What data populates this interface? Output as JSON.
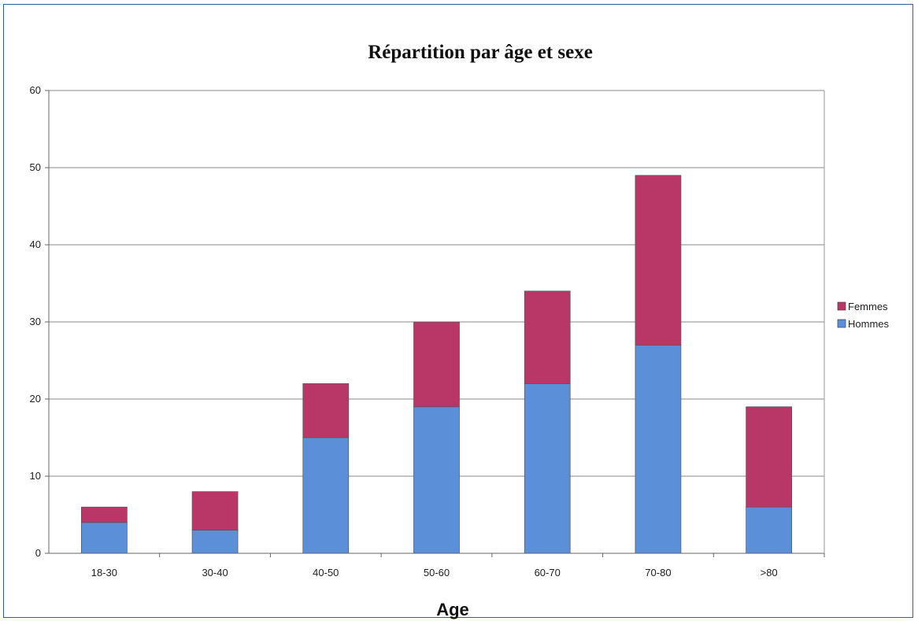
{
  "chart_data": {
    "type": "bar",
    "stacked": true,
    "title": "Répartition par âge et sexe",
    "xlabel": "Age",
    "ylabel": "",
    "categories": [
      "18-30",
      "30-40",
      "40-50",
      "50-60",
      "60-70",
      "70-80",
      ">80"
    ],
    "series": [
      {
        "name": "Hommes",
        "values": [
          4,
          3,
          15,
          19,
          22,
          27,
          6
        ],
        "color": "#5b8fd8"
      },
      {
        "name": "Femmes",
        "values": [
          2,
          5,
          7,
          11,
          12,
          22,
          13
        ],
        "color": "#b83767"
      }
    ],
    "ylim": [
      0,
      60
    ],
    "yticks": [
      0,
      10,
      20,
      30,
      40,
      50,
      60
    ],
    "grid": true,
    "legend": {
      "placement": "right",
      "order": [
        "Femmes",
        "Hommes"
      ]
    }
  }
}
